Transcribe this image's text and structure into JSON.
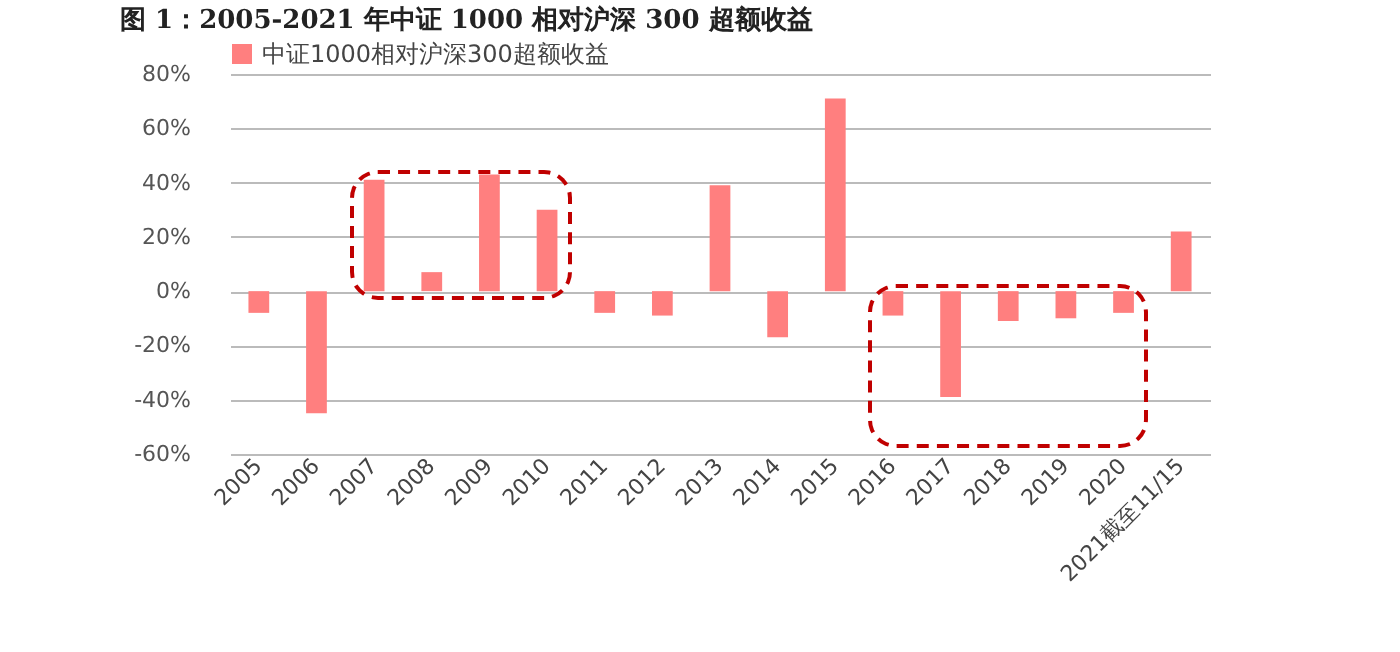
{
  "chart_data": {
    "type": "bar",
    "title": "图 1：2005-2021 年中证 1000 相对沪深 300 超额收益",
    "categories": [
      "2005",
      "2006",
      "2007",
      "2008",
      "2009",
      "2010",
      "2011",
      "2012",
      "2013",
      "2014",
      "2015",
      "2016",
      "2017",
      "2018",
      "2019",
      "2020",
      "2021截至11/15"
    ],
    "series": [
      {
        "name": "中证1000相对沪深300超额收益",
        "color": "#ff7f7f",
        "values": [
          -8,
          -45,
          41,
          7,
          43,
          30,
          -8,
          -9,
          39,
          -17,
          71,
          -9,
          -39,
          -11,
          -10,
          -8,
          22
        ]
      }
    ],
    "ylim": [
      -60,
      80
    ],
    "yticks": [
      {
        "value": -60,
        "label": "-60%"
      },
      {
        "value": -40,
        "label": "-40%"
      },
      {
        "value": -20,
        "label": "-20%"
      },
      {
        "value": 0,
        "label": "0%"
      },
      {
        "value": 20,
        "label": "20%"
      },
      {
        "value": 40,
        "label": "40%"
      },
      {
        "value": 60,
        "label": "60%"
      },
      {
        "value": 80,
        "label": "80%"
      }
    ],
    "grid": "y",
    "legend": "top"
  }
}
